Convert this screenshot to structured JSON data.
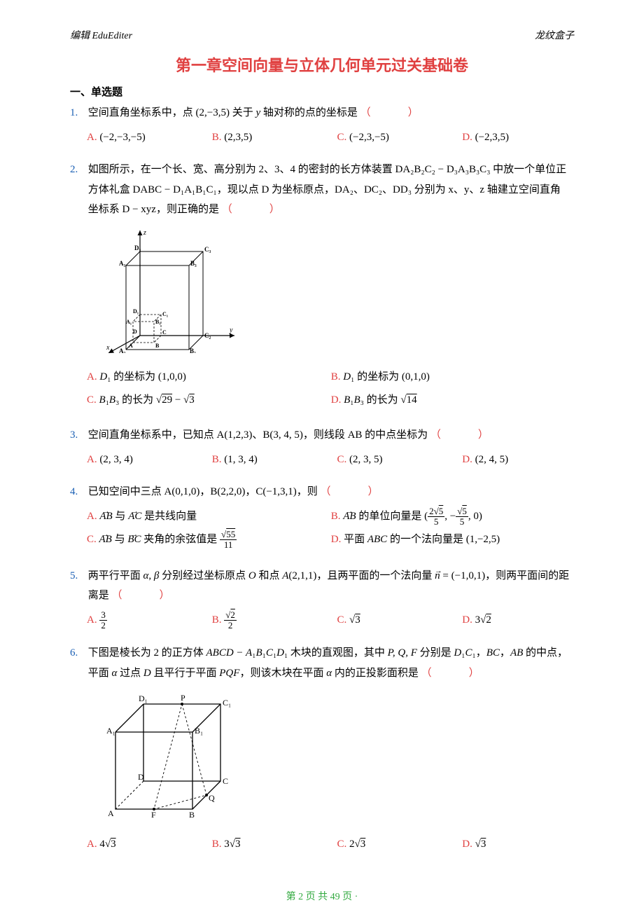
{
  "colors": {
    "title_red": "#e04040",
    "qnum_blue": "#1a5fb4",
    "opt_red": "#e04040",
    "footer_green": "#33aa40",
    "text": "#000000",
    "bg": "#ffffff"
  },
  "fontsizes": {
    "body": 15,
    "title": 22,
    "header": 14,
    "footer": 14
  },
  "header": {
    "left": "编辑 EduEditer",
    "right": "龙纹盒子"
  },
  "title": "第一章空间向量与立体几何单元过关基础卷",
  "section": "一、单选题",
  "questions": [
    {
      "num": "1.",
      "text_parts": {
        "pre": "空间直角坐标系中，点 (2,−3,5) 关于 ",
        "var": "y",
        "post": " 轴对称的点的坐标是"
      },
      "options_layout": "4col",
      "options": [
        {
          "label": "A.",
          "text": "(−2,−3,−5)"
        },
        {
          "label": "B.",
          "text": "(2,3,5)"
        },
        {
          "label": "C.",
          "text": "(−2,3,−5)"
        },
        {
          "label": "D.",
          "text": "(−2,3,5)"
        }
      ]
    },
    {
      "num": "2.",
      "text": "如图所示，在一个长、宽、高分别为 2、3、4 的密封的长方体装置 DA₂B₂C₂ − D₃A₃B₃C₃ 中放一个单位正方体礼盒 DABC − D₁A₁B₁C₁，现以点 D 为坐标原点，DA₂、DC₂、DD₃ 分别为 x、y、z 轴建立空间直角坐标系 D − xyz，则正确的是",
      "diagram": {
        "type": "cuboid_nested",
        "outer_dims": [
          2,
          3,
          4
        ],
        "inner_dims": [
          1,
          1,
          1
        ],
        "axes": [
          "x",
          "y",
          "z"
        ],
        "labels": [
          "A",
          "B",
          "C",
          "D",
          "A₁",
          "B₁",
          "C₁",
          "D₁",
          "A₂",
          "B₂",
          "C₂",
          "D₂",
          "A₃",
          "B₃",
          "C₃",
          "D₃"
        ],
        "stroke": "#000000",
        "stroke_width": 1
      },
      "options_layout": "2col",
      "options": [
        {
          "label": "A.",
          "html": "<span class='math'>D</span>₁ 的坐标为 (1,0,0)"
        },
        {
          "label": "B.",
          "html": "<span class='math'>D</span>₁ 的坐标为 (0,1,0)"
        },
        {
          "label": "C.",
          "html": "<span class='math'>B</span>₁<span class='math'>B</span>₃ 的长为 √<span class='sqrt'>29</span> − √<span class='sqrt'>3</span>"
        },
        {
          "label": "D.",
          "html": "<span class='math'>B</span>₁<span class='math'>B</span>₃ 的长为 √<span class='sqrt'>14</span>"
        }
      ]
    },
    {
      "num": "3.",
      "text": "空间直角坐标系中，已知点 A(1,2,3)、B(3, 4, 5)，则线段 AB 的中点坐标为",
      "options_layout": "4col",
      "options": [
        {
          "label": "A.",
          "text": "(2, 3, 4)"
        },
        {
          "label": "B.",
          "text": "(1, 3, 4)"
        },
        {
          "label": "C.",
          "text": "(2, 3, 5)"
        },
        {
          "label": "D.",
          "text": "(2, 4, 5)"
        }
      ]
    },
    {
      "num": "4.",
      "text": "已知空间中三点 A(0,1,0)，B(2,2,0)，C(−1,3,1)，则",
      "options_layout": "2col",
      "options": [
        {
          "label": "A.",
          "html": "<span class='vec math'>AB</span> 与 <span class='vec math'>AC</span> 是共线向量"
        },
        {
          "label": "B.",
          "html": "<span class='vec math'>AB</span> 的单位向量是 (<span class='frac'><span class='num'>2√<span class='sqrt'>5</span></span><span class='den'>5</span></span>, −<span class='frac'><span class='num'>√<span class='sqrt'>5</span></span><span class='den'>5</span></span>, 0)"
        },
        {
          "label": "C.",
          "html": "<span class='vec math'>AB</span> 与 <span class='vec math'>BC</span> 夹角的余弦值是 <span class='frac'><span class='num'>√<span class='sqrt'>55</span></span><span class='den'>11</span></span>"
        },
        {
          "label": "D.",
          "html": "平面 <span class='math'>ABC</span> 的一个法向量是 (1,−2,5)"
        }
      ]
    },
    {
      "num": "5.",
      "text_html": "两平行平面 <span class='math'>α</span>, <span class='math'>β</span> 分别经过坐标原点 <span class='math'>O</span> 和点 <span class='math'>A</span>(2,1,1)，且两平面的一个法向量 <span class='vec math'>n</span> = (−1,0,1)，则两平面间的距离是",
      "options_layout": "4col",
      "options": [
        {
          "label": "A.",
          "html": "<span class='frac'><span class='num'>3</span><span class='den'>2</span></span>"
        },
        {
          "label": "B.",
          "html": "<span class='frac'><span class='num'>√<span class='sqrt'>2</span></span><span class='den'>2</span></span>"
        },
        {
          "label": "C.",
          "html": "√<span class='sqrt'>3</span>"
        },
        {
          "label": "D.",
          "html": "3√<span class='sqrt'>2</span>"
        }
      ]
    },
    {
      "num": "6.",
      "text_html": "下图是棱长为 2 的正方体 <span class='math'>ABCD − A</span>₁<span class='math'>B</span>₁<span class='math'>C</span>₁<span class='math'>D</span>₁ 木块的直观图，其中 <span class='math'>P, Q, F</span> 分别是 <span class='math'>D</span>₁<span class='math'>C</span>₁，<span class='math'>BC</span>，<span class='math'>AB</span> 的中点，平面 <span class='math'>α</span> 过点 <span class='math'>D</span> 且平行于平面 <span class='math'>PQF</span>，则该木块在平面 <span class='math'>α</span> 内的正投影面积是",
      "diagram": {
        "type": "cube_with_midpoints",
        "edge_length": 2,
        "labels": [
          "A",
          "B",
          "C",
          "D",
          "A₁",
          "B₁",
          "C₁",
          "D₁",
          "P",
          "Q",
          "F"
        ],
        "midpoints": {
          "P": "D₁C₁",
          "Q": "BC",
          "F": "AB"
        },
        "stroke": "#000000",
        "stroke_width": 1
      },
      "options_layout": "4col",
      "options": [
        {
          "label": "A.",
          "html": "4√<span class='sqrt'>3</span>"
        },
        {
          "label": "B.",
          "html": "3√<span class='sqrt'>3</span>"
        },
        {
          "label": "C.",
          "html": "2√<span class='sqrt'>3</span>"
        },
        {
          "label": "D.",
          "html": "√<span class='sqrt'>3</span>"
        }
      ]
    }
  ],
  "paren": "（　　　）",
  "footer": "第 2 页  共 49 页 ·"
}
